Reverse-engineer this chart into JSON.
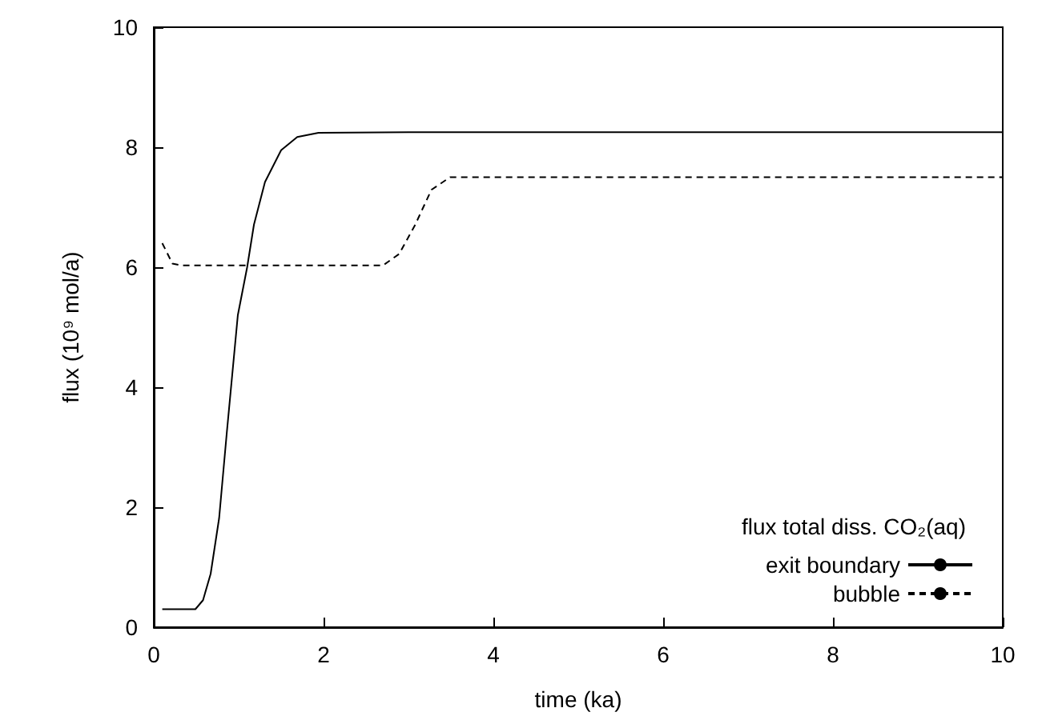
{
  "chart_data": {
    "type": "line",
    "xlabel": "time (ka)",
    "ylabel": "flux (10⁹ mol/a)",
    "legend_title": "flux total diss. CO₂(aq)",
    "xlim": [
      0,
      10
    ],
    "ylim": [
      0,
      10
    ],
    "xticks": [
      0,
      2,
      4,
      6,
      8,
      10
    ],
    "yticks": [
      0,
      2,
      4,
      6,
      8,
      10
    ],
    "grid": false,
    "legend": "bottom right",
    "marker": "none",
    "series": [
      {
        "name": "exit boundary",
        "color": "#000000",
        "line_style": "solid",
        "x": [
          0.1,
          0.49,
          0.58,
          0.67,
          0.77,
          0.86,
          0.99,
          1.1,
          1.18,
          1.31,
          1.5,
          1.69,
          1.94,
          3,
          10
        ],
        "values": [
          0.3,
          0.3,
          0.45,
          0.89,
          1.82,
          3.24,
          5.2,
          6.0,
          6.71,
          7.42,
          7.95,
          8.17,
          8.24,
          8.25,
          8.25
        ]
      },
      {
        "name": "bubble",
        "color": "#000000",
        "line_style": "dashed",
        "x": [
          0.1,
          0.22,
          0.32,
          2.7,
          2.89,
          3.08,
          3.27,
          3.49,
          10
        ],
        "values": [
          6.4,
          6.06,
          6.03,
          6.03,
          6.22,
          6.71,
          7.29,
          7.5,
          7.5
        ]
      }
    ]
  }
}
